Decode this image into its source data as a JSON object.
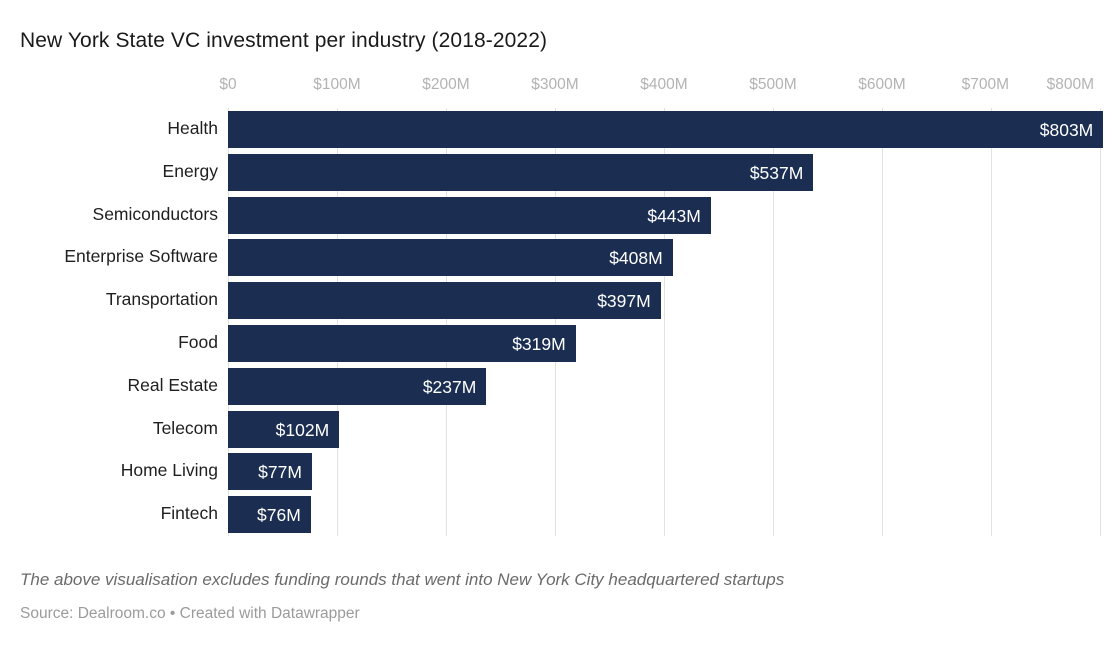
{
  "header": {
    "title": "New York State VC investment per industry (2018-2022)"
  },
  "chart_data": {
    "type": "bar",
    "orientation": "horizontal",
    "title": "New York State VC investment per industry (2018-2022)",
    "categories": [
      "Health",
      "Energy",
      "Semiconductors",
      "Enterprise Software",
      "Transportation",
      "Food",
      "Real Estate",
      "Telecom",
      "Home Living",
      "Fintech"
    ],
    "values": [
      803,
      537,
      443,
      408,
      397,
      319,
      237,
      102,
      77,
      76
    ],
    "value_labels": [
      "$803M",
      "$537M",
      "$443M",
      "$408M",
      "$397M",
      "$319M",
      "$237M",
      "$102M",
      "$77M",
      "$76M"
    ],
    "x_ticks": [
      "$0",
      "$100M",
      "$200M",
      "$300M",
      "$400M",
      "$500M",
      "$600M",
      "$700M",
      "$800M"
    ],
    "x_tick_values": [
      0,
      100,
      200,
      300,
      400,
      500,
      600,
      700,
      800
    ],
    "xlim": [
      0,
      800
    ],
    "xlabel": "",
    "ylabel": "",
    "grid": true,
    "legend": false,
    "value_label_position": "inside-end",
    "bar_color": "#1b2e52",
    "gridline_color": "#e2e2e2",
    "tick_label_color": "#b3b3b3"
  },
  "footer": {
    "note": "The above visualisation excludes funding rounds that went into New York City headquartered startups",
    "source": "Source: Dealroom.co • Created with Datawrapper"
  }
}
